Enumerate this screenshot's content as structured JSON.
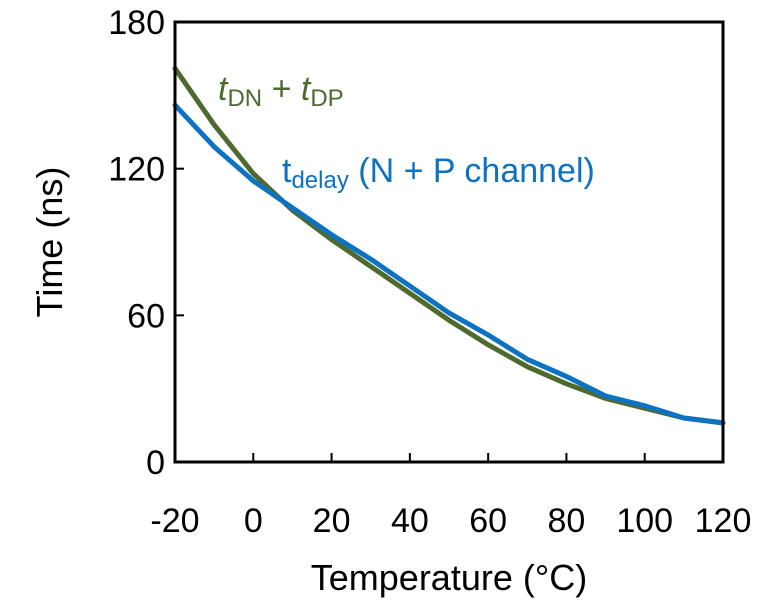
{
  "chart_data": {
    "type": "line",
    "xlabel": "Temperature (°C)",
    "ylabel": "Time (ns)",
    "xlim": [
      -20,
      120
    ],
    "ylim": [
      0,
      180
    ],
    "xticks": [
      "-20",
      "0",
      "20",
      "40",
      "60",
      "80",
      "100",
      "120"
    ],
    "yticks": [
      "0",
      "60",
      "120",
      "180"
    ],
    "grid": false,
    "series": [
      {
        "name": "tDN + tDP",
        "color": "#4e6a2e",
        "x": [
          -20,
          -10,
          0,
          10,
          20,
          30,
          40,
          50,
          60,
          70,
          80,
          90,
          100,
          110,
          120
        ],
        "y": [
          161,
          138,
          118,
          103,
          91,
          80,
          69,
          58,
          48,
          39,
          32,
          26,
          22,
          18,
          16
        ]
      },
      {
        "name": "tdelay (N + P channel)",
        "color": "#0d72c2",
        "x": [
          -20,
          -10,
          0,
          10,
          20,
          30,
          40,
          50,
          60,
          70,
          80,
          90,
          100,
          110,
          120
        ],
        "y": [
          146,
          129,
          115,
          104,
          93,
          83,
          72,
          61,
          52,
          42,
          35,
          27,
          23,
          18,
          16
        ]
      }
    ],
    "labels": {
      "green": {
        "t": "t",
        "sub1": "DN",
        "plus": " + ",
        "t2": "t",
        "sub2": "DP"
      },
      "blue": {
        "t": "t",
        "sub": "delay",
        "rest": " (N + P channel)"
      }
    }
  }
}
